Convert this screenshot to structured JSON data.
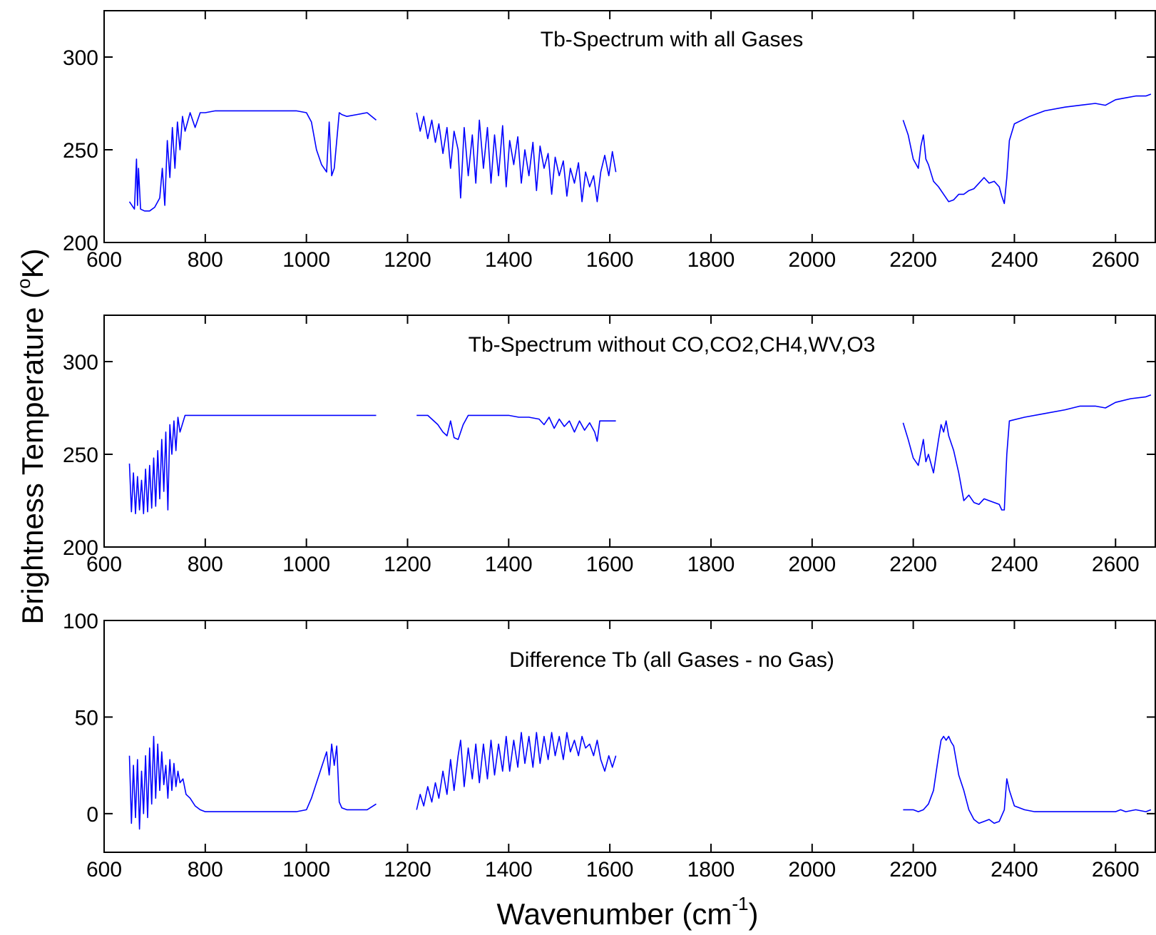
{
  "colors": {
    "series": "#0000ff",
    "axes": "#000000",
    "background": "#ffffff"
  },
  "ylabel_parts": [
    "Brightness Temperature (",
    "o",
    "K)"
  ],
  "xlabel_parts": [
    "Wavenumber (cm",
    "-1",
    ")"
  ],
  "chart_data": [
    {
      "type": "line",
      "title": "Tb-Spectrum with all Gases",
      "xlim": [
        600,
        2680
      ],
      "ylim": [
        200,
        325
      ],
      "xticks": [
        600,
        800,
        1000,
        1200,
        1400,
        1600,
        1800,
        2000,
        2200,
        2400,
        2600
      ],
      "yticks": [
        200,
        250,
        300
      ],
      "grid": false,
      "series": [
        {
          "x": [
            650,
            660,
            664,
            666,
            668,
            672,
            680,
            690,
            700,
            710,
            715,
            720,
            725,
            730,
            735,
            740,
            745,
            750,
            755,
            760,
            770,
            780,
            790,
            800,
            820,
            850,
            900,
            950,
            980,
            1000,
            1010,
            1020,
            1030,
            1040,
            1045,
            1050,
            1055,
            1060,
            1065,
            1070,
            1080,
            1100,
            1120,
            1138
          ],
          "y": [
            222,
            218,
            245,
            220,
            240,
            218,
            217,
            217,
            219,
            224,
            240,
            220,
            255,
            235,
            262,
            240,
            265,
            250,
            268,
            260,
            270,
            262,
            270,
            270,
            271,
            271,
            271,
            271,
            271,
            270,
            265,
            250,
            242,
            238,
            265,
            236,
            240,
            255,
            270,
            269,
            268,
            269,
            270,
            266
          ]
        },
        {
          "x": [
            1218,
            1225,
            1232,
            1240,
            1248,
            1255,
            1262,
            1270,
            1278,
            1285,
            1292,
            1300,
            1305,
            1312,
            1320,
            1328,
            1335,
            1342,
            1350,
            1358,
            1365,
            1372,
            1380,
            1388,
            1395,
            1402,
            1410,
            1418,
            1425,
            1432,
            1440,
            1448,
            1455,
            1462,
            1470,
            1478,
            1485,
            1492,
            1500,
            1508,
            1515,
            1522,
            1530,
            1538,
            1545,
            1552,
            1560,
            1568,
            1575,
            1582,
            1590,
            1598,
            1605,
            1612
          ],
          "y": [
            270,
            260,
            268,
            256,
            266,
            254,
            264,
            248,
            262,
            240,
            260,
            250,
            224,
            262,
            236,
            258,
            232,
            266,
            240,
            262,
            232,
            258,
            236,
            263,
            230,
            255,
            242,
            257,
            232,
            250,
            236,
            254,
            228,
            252,
            240,
            248,
            226,
            246,
            236,
            244,
            225,
            240,
            232,
            243,
            222,
            238,
            230,
            236,
            222,
            238,
            247,
            236,
            249,
            238
          ]
        },
        {
          "x": [
            2180,
            2190,
            2200,
            2210,
            2215,
            2220,
            2225,
            2230,
            2240,
            2250,
            2260,
            2270,
            2280,
            2290,
            2300,
            2310,
            2320,
            2330,
            2340,
            2350,
            2360,
            2370,
            2375,
            2380,
            2385,
            2390,
            2400,
            2430,
            2460,
            2500,
            2530,
            2560,
            2580,
            2600,
            2620,
            2640,
            2660,
            2670
          ],
          "y": [
            266,
            258,
            245,
            240,
            252,
            258,
            245,
            242,
            233,
            230,
            226,
            222,
            223,
            226,
            226,
            228,
            229,
            232,
            235,
            232,
            233,
            230,
            225,
            221,
            235,
            255,
            264,
            268,
            271,
            273,
            274,
            275,
            274,
            277,
            278,
            279,
            279,
            280
          ]
        }
      ]
    },
    {
      "type": "line",
      "title": "Tb-Spectrum without CO,CO2,CH4,WV,O3",
      "xlim": [
        600,
        2680
      ],
      "ylim": [
        200,
        325
      ],
      "xticks": [
        600,
        800,
        1000,
        1200,
        1400,
        1600,
        1800,
        2000,
        2200,
        2400,
        2600
      ],
      "yticks": [
        200,
        250,
        300
      ],
      "grid": false,
      "series": [
        {
          "x": [
            650,
            654,
            658,
            662,
            666,
            670,
            674,
            678,
            682,
            686,
            690,
            694,
            698,
            702,
            706,
            710,
            714,
            718,
            722,
            726,
            730,
            734,
            738,
            742,
            746,
            750,
            760,
            780,
            800,
            850,
            900,
            950,
            1000,
            1050,
            1100,
            1138
          ],
          "y": [
            245,
            219,
            240,
            218,
            238,
            220,
            236,
            218,
            242,
            219,
            244,
            221,
            248,
            222,
            252,
            226,
            258,
            230,
            262,
            220,
            266,
            250,
            268,
            252,
            270,
            262,
            271,
            271,
            271,
            271,
            271,
            271,
            271,
            271,
            271,
            271
          ]
        },
        {
          "x": [
            1218,
            1240,
            1260,
            1270,
            1278,
            1285,
            1292,
            1300,
            1310,
            1320,
            1340,
            1360,
            1380,
            1400,
            1420,
            1440,
            1460,
            1470,
            1480,
            1490,
            1500,
            1510,
            1520,
            1530,
            1540,
            1550,
            1560,
            1570,
            1575,
            1580,
            1590,
            1600,
            1612
          ],
          "y": [
            271,
            271,
            266,
            262,
            260,
            268,
            259,
            258,
            266,
            271,
            271,
            271,
            271,
            271,
            270,
            270,
            269,
            266,
            270,
            264,
            269,
            265,
            268,
            262,
            268,
            263,
            267,
            262,
            257,
            268,
            268,
            268,
            268
          ]
        },
        {
          "x": [
            2180,
            2190,
            2200,
            2210,
            2220,
            2225,
            2230,
            2240,
            2250,
            2255,
            2260,
            2265,
            2270,
            2280,
            2290,
            2300,
            2310,
            2320,
            2330,
            2340,
            2350,
            2360,
            2370,
            2375,
            2380,
            2385,
            2390,
            2420,
            2460,
            2500,
            2530,
            2560,
            2580,
            2600,
            2630,
            2660,
            2670
          ],
          "y": [
            267,
            258,
            248,
            244,
            258,
            246,
            250,
            240,
            258,
            266,
            262,
            268,
            260,
            252,
            240,
            225,
            228,
            224,
            223,
            226,
            225,
            224,
            223,
            220,
            220,
            250,
            268,
            270,
            272,
            274,
            276,
            276,
            275,
            278,
            280,
            281,
            282
          ]
        }
      ]
    },
    {
      "type": "line",
      "title": "Difference Tb (all Gases - no Gas)",
      "xlim": [
        600,
        2680
      ],
      "ylim": [
        -20,
        100
      ],
      "xticks": [
        600,
        800,
        1000,
        1200,
        1400,
        1600,
        1800,
        2000,
        2200,
        2400,
        2600
      ],
      "yticks": [
        0,
        50,
        100
      ],
      "grid": false,
      "series": [
        {
          "x": [
            650,
            654,
            658,
            662,
            666,
            670,
            674,
            678,
            682,
            686,
            690,
            694,
            698,
            702,
            706,
            710,
            714,
            718,
            722,
            726,
            730,
            734,
            738,
            742,
            746,
            750,
            756,
            762,
            770,
            780,
            790,
            800,
            820,
            850,
            900,
            950,
            980,
            1000,
            1010,
            1020,
            1030,
            1040,
            1045,
            1050,
            1055,
            1060,
            1065,
            1070,
            1080,
            1100,
            1120,
            1138
          ],
          "y": [
            30,
            -5,
            25,
            -2,
            28,
            -8,
            22,
            0,
            30,
            -2,
            34,
            5,
            40,
            8,
            36,
            12,
            32,
            15,
            25,
            8,
            28,
            12,
            26,
            14,
            22,
            16,
            18,
            10,
            8,
            4,
            2,
            1,
            1,
            1,
            1,
            1,
            1,
            2,
            8,
            16,
            24,
            32,
            20,
            36,
            25,
            35,
            6,
            3,
            2,
            2,
            2,
            5
          ]
        },
        {
          "x": [
            1218,
            1225,
            1232,
            1240,
            1248,
            1255,
            1262,
            1270,
            1278,
            1285,
            1292,
            1300,
            1305,
            1312,
            1320,
            1328,
            1335,
            1342,
            1350,
            1358,
            1365,
            1372,
            1380,
            1388,
            1395,
            1402,
            1410,
            1418,
            1425,
            1432,
            1440,
            1448,
            1455,
            1462,
            1470,
            1478,
            1485,
            1492,
            1500,
            1508,
            1515,
            1522,
            1530,
            1538,
            1545,
            1552,
            1560,
            1568,
            1575,
            1582,
            1590,
            1598,
            1605,
            1612
          ],
          "y": [
            2,
            10,
            4,
            14,
            6,
            16,
            8,
            22,
            10,
            28,
            12,
            30,
            38,
            14,
            34,
            18,
            36,
            16,
            36,
            18,
            38,
            20,
            36,
            22,
            40,
            22,
            38,
            24,
            42,
            26,
            40,
            24,
            42,
            26,
            40,
            28,
            42,
            30,
            40,
            28,
            42,
            32,
            38,
            30,
            40,
            34,
            36,
            30,
            38,
            28,
            22,
            30,
            24,
            30
          ]
        },
        {
          "x": [
            2180,
            2190,
            2200,
            2210,
            2220,
            2230,
            2240,
            2250,
            2255,
            2260,
            2265,
            2270,
            2275,
            2280,
            2290,
            2300,
            2310,
            2320,
            2330,
            2340,
            2350,
            2360,
            2370,
            2380,
            2385,
            2390,
            2400,
            2420,
            2440,
            2500,
            2560,
            2600,
            2610,
            2620,
            2640,
            2660,
            2670
          ],
          "y": [
            2,
            2,
            2,
            1,
            2,
            5,
            12,
            30,
            38,
            40,
            38,
            40,
            37,
            35,
            20,
            12,
            2,
            -3,
            -5,
            -4,
            -3,
            -5,
            -4,
            2,
            18,
            12,
            4,
            2,
            1,
            1,
            1,
            1,
            2,
            1,
            2,
            1,
            2
          ]
        }
      ]
    }
  ]
}
